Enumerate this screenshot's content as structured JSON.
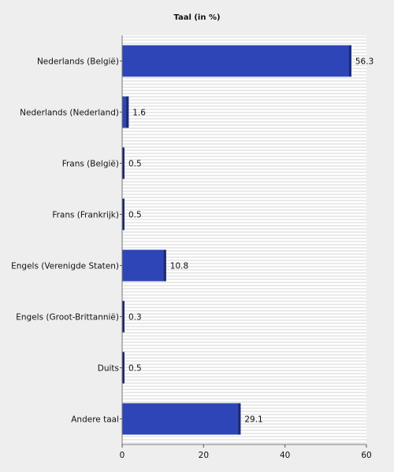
{
  "chart_data": {
    "type": "bar",
    "orientation": "horizontal",
    "title": "Taal (in %)",
    "xlabel": "",
    "ylabel": "",
    "categories": [
      "Nederlands (België)",
      "Nederlands (Nederland)",
      "Frans (België)",
      "Frans (Frankrijk)",
      "Engels (Verenigde Staten)",
      "Engels (Groot-Brittannië)",
      "Duits",
      "Andere taal"
    ],
    "values": [
      56.3,
      1.6,
      0.5,
      0.5,
      10.8,
      0.3,
      0.5,
      29.1
    ],
    "value_labels": [
      "56.3",
      "1.6",
      "0.5",
      "0.5",
      "10.8",
      "0.3",
      "0.5",
      "29.1"
    ],
    "xlim": [
      0,
      60
    ],
    "xticks": [
      0,
      20,
      40,
      60
    ],
    "grid": "horizontal-lines",
    "legend": "none",
    "colors": {
      "bar": "#2e45b8",
      "bar_shadow": "#1c2a6e",
      "plot_background": "#ffffff",
      "grid": "#d6d6d6",
      "page_background": "#eeeeee"
    }
  }
}
